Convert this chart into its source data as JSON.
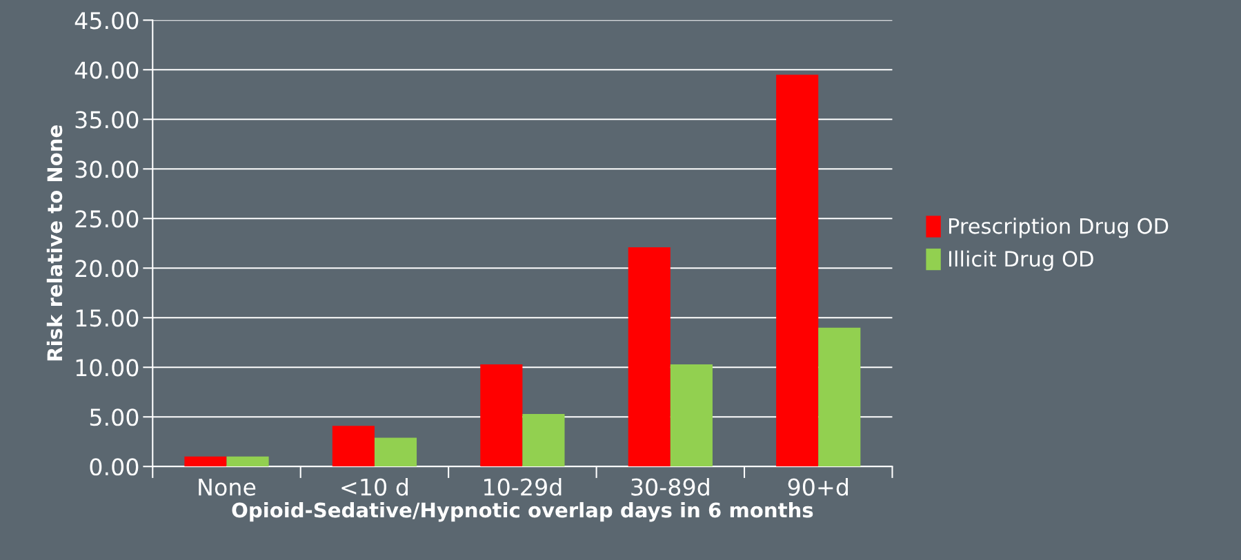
{
  "chart_data": {
    "type": "bar",
    "xlabel": "Opioid-Sedative/Hypnotic overlap days in 6 months",
    "ylabel": "Risk relative to None",
    "categories": [
      "None",
      "<10 d",
      "10-29d",
      "30-89d",
      "90+d"
    ],
    "series": [
      {
        "name": "Prescription Drug OD",
        "color": "#ff0000",
        "values": [
          1.0,
          4.1,
          10.3,
          22.1,
          39.5
        ]
      },
      {
        "name": "Illicit Drug OD",
        "color": "#92d050",
        "values": [
          1.0,
          2.9,
          5.3,
          10.3,
          14.0
        ]
      }
    ],
    "ylim": [
      0,
      45
    ],
    "yticks": [
      {
        "value": 0,
        "label": "0.00"
      },
      {
        "value": 5,
        "label": "5.00"
      },
      {
        "value": 10,
        "label": "10.00"
      },
      {
        "value": 15,
        "label": "15.00"
      },
      {
        "value": 20,
        "label": "20.00"
      },
      {
        "value": 25,
        "label": "25.00"
      },
      {
        "value": 30,
        "label": "30.00"
      },
      {
        "value": 35,
        "label": "35.00"
      },
      {
        "value": 40,
        "label": "40.00"
      },
      {
        "value": 45,
        "label": "45.00"
      }
    ],
    "grid": "y",
    "legend": "right"
  }
}
